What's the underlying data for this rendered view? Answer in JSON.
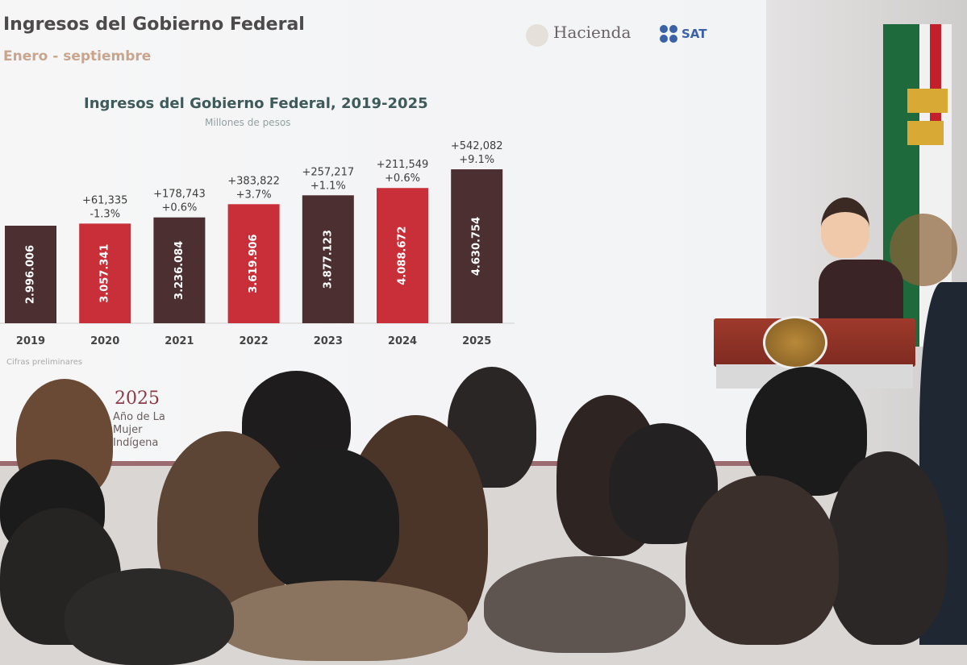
{
  "slide": {
    "title": "Ingresos del Gobierno Federal",
    "subtitle": "Enero - septiembre",
    "logos": [
      "Hacienda",
      "SAT"
    ],
    "note": "Cifras preliminares",
    "year_logo": "2025",
    "year_logo_sub": "Año de La Mujer Indígena"
  },
  "chart_data": {
    "type": "bar",
    "title": "Ingresos del Gobierno Federal, 2019-2025",
    "subtitle": "Millones de pesos",
    "categories": [
      "2019",
      "2020",
      "2021",
      "2022",
      "2023",
      "2024",
      "2025"
    ],
    "values": [
      2996006,
      3057341,
      3236084,
      3619906,
      3877123,
      4088672,
      4630754
    ],
    "value_labels": [
      "2.996.006",
      "3.057.341",
      "3.236.084",
      "3.619.906",
      "3.877.123",
      "4.088.672",
      "4.630.754"
    ],
    "change_abs": [
      "",
      "+61,335",
      "+178,743",
      "+383,822",
      "+257,217",
      "+211,549",
      "+542,082"
    ],
    "change_pct": [
      "",
      "-1.3%",
      "+0.6%",
      "+3.7%",
      "+1.1%",
      "+0.6%",
      "+9.1%"
    ],
    "colors": [
      "#4b2f31",
      "#c92f38",
      "#4b2f31",
      "#c92f38",
      "#4b2f31",
      "#c92f38",
      "#4b2f31"
    ],
    "grid": false,
    "legend": "none"
  }
}
